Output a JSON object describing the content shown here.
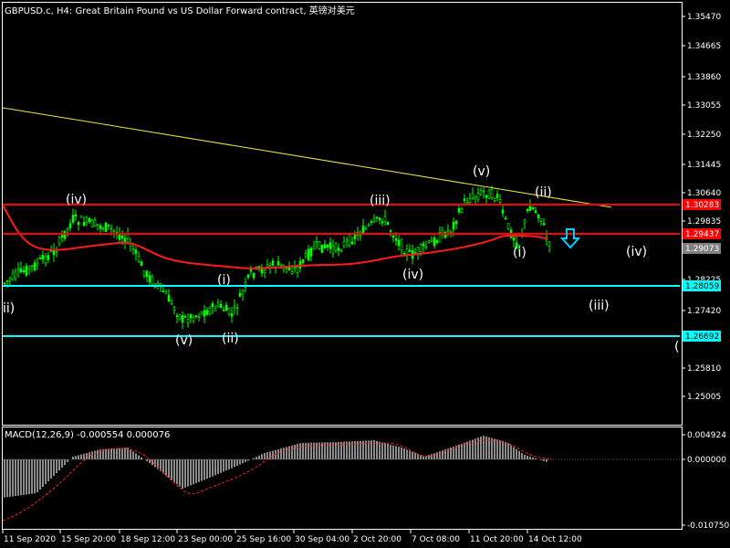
{
  "chart": {
    "title": "GBPUSD.c, H4:  Great Britain Pound vs US Dollar Forward contract, 英镑对美元",
    "price_labels": [
      "1.35470",
      "1.34665",
      "1.33860",
      "1.33055",
      "1.32250",
      "1.31445",
      "1.30640",
      "1.29835",
      "1.29073",
      "1.28225",
      "1.27420",
      "1.26692",
      "1.25810",
      "1.25005"
    ],
    "level_tags": [
      {
        "label": "1.30283",
        "color": "#ff0000"
      },
      {
        "label": "1.29437",
        "color": "#ff0000"
      },
      {
        "label": "1.29073",
        "color": "#808080"
      },
      {
        "label": "1.28059",
        "color": "#00ffff"
      },
      {
        "label": "1.26692",
        "color": "#00ffff"
      }
    ],
    "time_labels": [
      "11 Sep 2020",
      "15 Sep 20:00",
      "18 Sep 12:00",
      "23 Sep 00:00",
      "25 Sep 16:00",
      "30 Sep 04:00",
      "2 Oct 20:00",
      "7 Oct 08:00",
      "11 Oct 20:00",
      "14 Oct 12:00"
    ],
    "wave_labels": [
      "ii)",
      "(iv)",
      "(v)",
      "(i)",
      "(ii)",
      "(iv)",
      "(iii)",
      "(v)",
      "(ii)",
      "(i)",
      "(iv)",
      "(iii)",
      "("
    ],
    "macd_title": "MACD(12,26,9) -0.000554 0.000076",
    "macd_labels": [
      "0.004924",
      "0.000000",
      "-0.010750"
    ]
  },
  "chart_data": {
    "type": "candlestick",
    "instrument": "GBPUSD.c",
    "timeframe": "H4",
    "horizontal_levels": [
      1.30283,
      1.29437,
      1.28059,
      1.26692
    ],
    "current_price": 1.29073,
    "macd": {
      "params": "12,26,9",
      "main": -0.000554,
      "signal": 7.6e-05,
      "range": [
        -0.01075,
        0.004924
      ]
    }
  }
}
